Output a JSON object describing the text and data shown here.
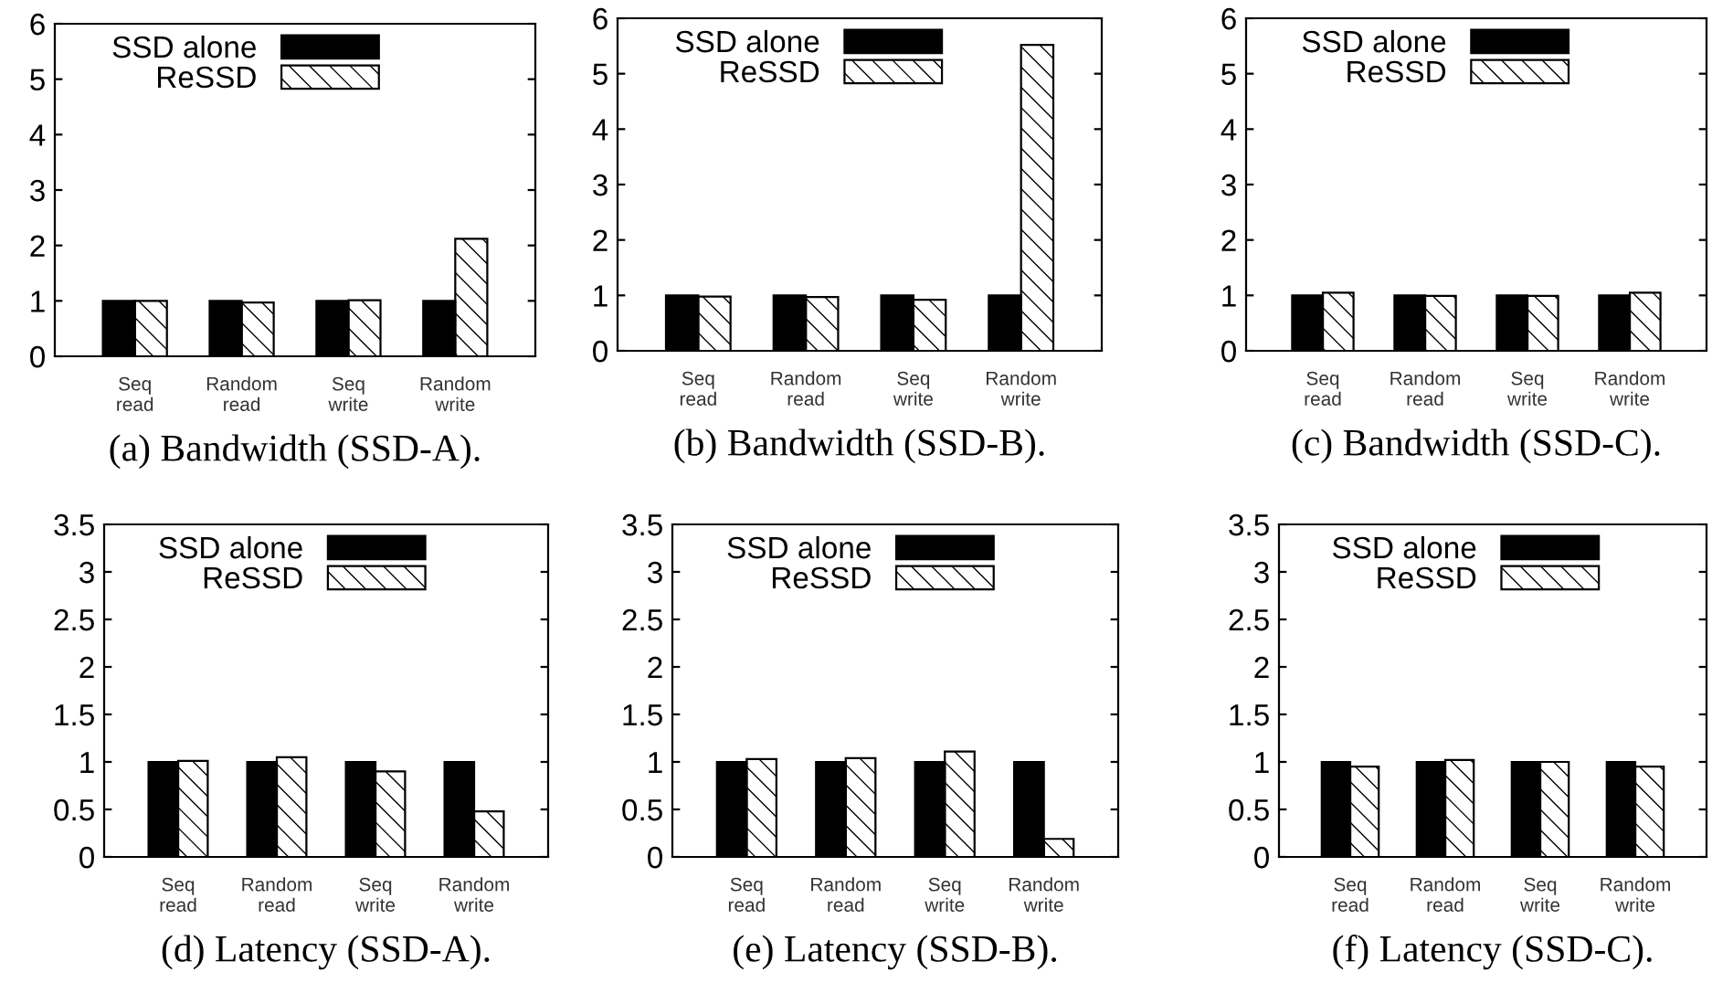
{
  "chart_data": [
    {
      "type": "bar",
      "title": "(a) Bandwidth (SSD-A).",
      "categories": [
        "Seq\nread",
        "Random\nread",
        "Seq\nwrite",
        "Random\nwrite"
      ],
      "ylim": [
        0,
        6
      ],
      "yticks": [
        0,
        1,
        2,
        3,
        4,
        5,
        6
      ],
      "legend": "top left",
      "series": [
        {
          "name": "SSD alone",
          "color": "#000000",
          "values": [
            1.0,
            1.0,
            1.0,
            1.0
          ]
        },
        {
          "name": "ReSSD",
          "color": "#000000",
          "values": [
            1.0,
            0.97,
            1.01,
            2.12
          ]
        }
      ]
    },
    {
      "type": "bar",
      "title": "(b) Bandwidth (SSD-B).",
      "categories": [
        "Seq\nread",
        "Random\nread",
        "Seq\nwrite",
        "Random\nwrite"
      ],
      "ylim": [
        0,
        6
      ],
      "yticks": [
        0,
        1,
        2,
        3,
        4,
        5,
        6
      ],
      "legend": "top left",
      "series": [
        {
          "name": "SSD alone",
          "color": "#000000",
          "values": [
            1.0,
            1.0,
            1.0,
            1.0
          ]
        },
        {
          "name": "ReSSD",
          "color": "#000000",
          "values": [
            0.98,
            0.97,
            0.92,
            5.52
          ]
        }
      ]
    },
    {
      "type": "bar",
      "title": "(c) Bandwidth (SSD-C).",
      "categories": [
        "Seq\nread",
        "Random\nread",
        "Seq\nwrite",
        "Random\nwrite"
      ],
      "ylim": [
        0,
        6
      ],
      "yticks": [
        0,
        1,
        2,
        3,
        4,
        5,
        6
      ],
      "legend": "top left",
      "series": [
        {
          "name": "SSD alone",
          "color": "#000000",
          "values": [
            1.0,
            1.0,
            1.0,
            1.0
          ]
        },
        {
          "name": "ReSSD",
          "color": "#000000",
          "values": [
            1.05,
            0.99,
            0.99,
            1.05
          ]
        }
      ]
    },
    {
      "type": "bar",
      "title": "(d) Latency (SSD-A).",
      "categories": [
        "Seq\nread",
        "Random\nread",
        "Seq\nwrite",
        "Random\nwrite"
      ],
      "ylim": [
        0,
        3.5
      ],
      "yticks": [
        0,
        0.5,
        1,
        1.5,
        2,
        2.5,
        3,
        3.5
      ],
      "legend": "top left",
      "series": [
        {
          "name": "SSD alone",
          "color": "#000000",
          "values": [
            1.0,
            1.0,
            1.0,
            1.0
          ]
        },
        {
          "name": "ReSSD",
          "color": "#000000",
          "values": [
            1.01,
            1.05,
            0.9,
            0.48
          ]
        }
      ]
    },
    {
      "type": "bar",
      "title": "(e) Latency (SSD-B).",
      "categories": [
        "Seq\nread",
        "Random\nread",
        "Seq\nwrite",
        "Random\nwrite"
      ],
      "ylim": [
        0,
        3.5
      ],
      "yticks": [
        0,
        0.5,
        1,
        1.5,
        2,
        2.5,
        3,
        3.5
      ],
      "legend": "top left",
      "series": [
        {
          "name": "SSD alone",
          "color": "#000000",
          "values": [
            1.0,
            1.0,
            1.0,
            1.0
          ]
        },
        {
          "name": "ReSSD",
          "color": "#000000",
          "values": [
            1.03,
            1.04,
            1.11,
            0.19
          ]
        }
      ]
    },
    {
      "type": "bar",
      "title": "(f) Latency (SSD-C).",
      "categories": [
        "Seq\nread",
        "Random\nread",
        "Seq\nwrite",
        "Random\nwrite"
      ],
      "ylim": [
        0,
        3.5
      ],
      "yticks": [
        0,
        0.5,
        1,
        1.5,
        2,
        2.5,
        3,
        3.5
      ],
      "legend": "top left",
      "series": [
        {
          "name": "SSD alone",
          "color": "#000000",
          "values": [
            1.0,
            1.0,
            1.0,
            1.0
          ]
        },
        {
          "name": "ReSSD",
          "color": "#000000",
          "values": [
            0.95,
            1.02,
            1.0,
            0.95
          ]
        }
      ]
    }
  ]
}
